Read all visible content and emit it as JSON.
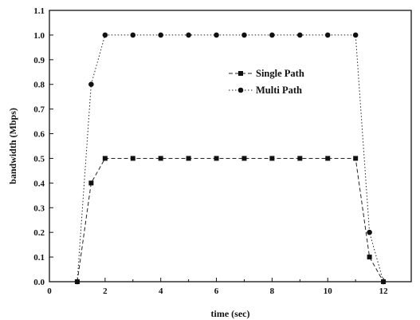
{
  "chart_data": {
    "type": "line",
    "title": "",
    "xlabel": "time (sec)",
    "ylabel": "bandwidth (Mbps)",
    "xlim": [
      0,
      13
    ],
    "ylim": [
      0.0,
      1.1
    ],
    "xticks": [
      0,
      2,
      4,
      6,
      8,
      10,
      12
    ],
    "yticks": [
      0.0,
      0.1,
      0.2,
      0.3,
      0.4,
      0.5,
      0.6,
      0.7,
      0.8,
      0.9,
      1.0,
      1.1
    ],
    "grid": false,
    "legend_position": "upper-right",
    "series": [
      {
        "name": "Single Path",
        "marker": "square",
        "line_style": "dash",
        "color": "#222222",
        "x": [
          1,
          1.5,
          2,
          3,
          4,
          5,
          6,
          7,
          8,
          9,
          10,
          11,
          11.5,
          12
        ],
        "y": [
          0.0,
          0.4,
          0.5,
          0.5,
          0.5,
          0.5,
          0.5,
          0.5,
          0.5,
          0.5,
          0.5,
          0.5,
          0.1,
          0.0
        ]
      },
      {
        "name": "Multi Path",
        "marker": "circle",
        "line_style": "dot",
        "color": "#222222",
        "x": [
          1,
          1.5,
          2,
          3,
          4,
          5,
          6,
          7,
          8,
          9,
          10,
          11,
          11.5,
          12
        ],
        "y": [
          0.0,
          0.8,
          1.0,
          1.0,
          1.0,
          1.0,
          1.0,
          1.0,
          1.0,
          1.0,
          1.0,
          1.0,
          0.2,
          0.0
        ]
      }
    ]
  }
}
